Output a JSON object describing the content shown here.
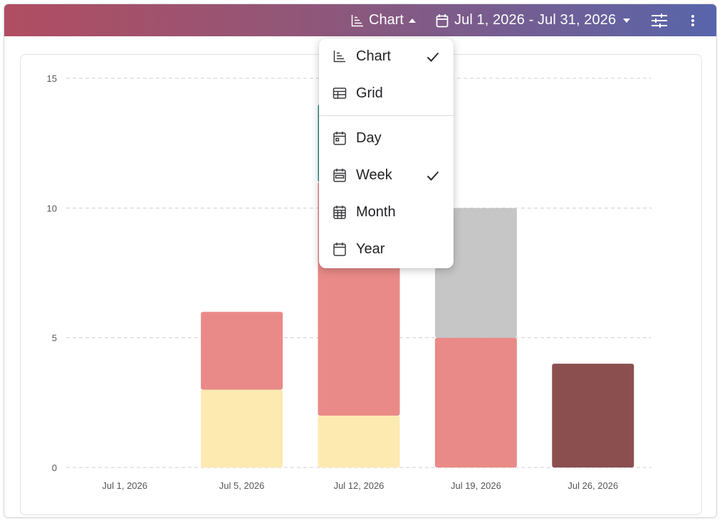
{
  "toolbar": {
    "view_label": "Chart",
    "date_range": "Jul 1, 2026 - Jul 31, 2026"
  },
  "dropdown": {
    "items": [
      {
        "label": "Chart",
        "icon": "chart-icon",
        "checked": true
      },
      {
        "label": "Grid",
        "icon": "grid-icon",
        "checked": false
      },
      {
        "label": "Day",
        "icon": "calendar-day-icon",
        "checked": false
      },
      {
        "label": "Week",
        "icon": "calendar-week-icon",
        "checked": true
      },
      {
        "label": "Month",
        "icon": "calendar-month-icon",
        "checked": false
      },
      {
        "label": "Year",
        "icon": "calendar-year-icon",
        "checked": false
      }
    ]
  },
  "colors": {
    "header_start": "#b14d61",
    "header_end": "#5865ab",
    "grid": "#cfcfd3",
    "axis_text": "#555559"
  },
  "chart_data": {
    "type": "bar",
    "stacked": true,
    "categories": [
      "Jul 1, 2026",
      "Jul 5, 2026",
      "Jul 12, 2026",
      "Jul 19, 2026",
      "Jul 26, 2026"
    ],
    "series": [
      {
        "color": "#fdeab1",
        "values": [
          0,
          3,
          2,
          0,
          0
        ]
      },
      {
        "color": "#ea8a88",
        "values": [
          0,
          3,
          9,
          5,
          0
        ]
      },
      {
        "color": "#c6c6c6",
        "values": [
          0,
          0,
          0,
          5,
          0
        ]
      },
      {
        "color": "#8c4f4f",
        "values": [
          0,
          0,
          0,
          0,
          4
        ]
      },
      {
        "color": "#2f8c80",
        "values": [
          0,
          0,
          3,
          0,
          0
        ]
      }
    ],
    "yticks": [
      0,
      5,
      10,
      15
    ],
    "ylim": [
      0,
      15
    ],
    "grid": true,
    "grid_style": "dashed horizontal",
    "legend": "none"
  }
}
